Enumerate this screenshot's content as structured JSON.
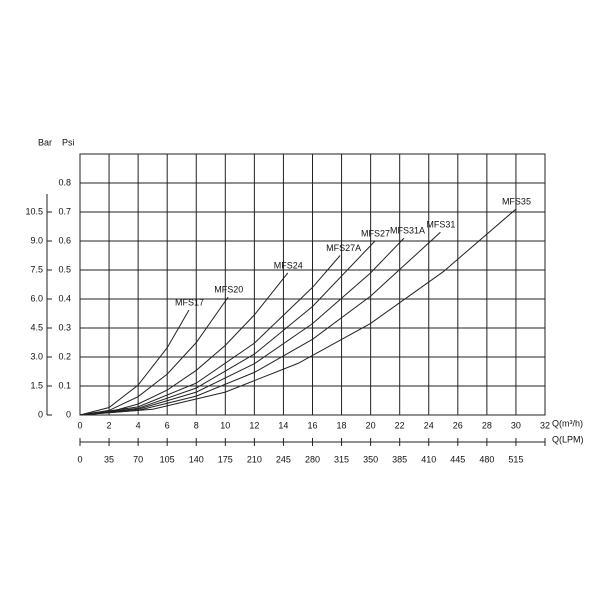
{
  "chart_data": {
    "type": "line",
    "y_label": "Bar",
    "y2_label": "Psi",
    "x_label": "Q(m³/h)",
    "x2_label": "Q(LPM)",
    "xlim": [
      0,
      32
    ],
    "xticks": [
      0,
      2,
      4,
      6,
      8,
      10,
      12,
      14,
      16,
      18,
      20,
      22,
      24,
      26,
      28,
      30,
      32
    ],
    "ylim": [
      0,
      0.9
    ],
    "yticks": [
      0,
      0.1,
      0.2,
      0.3,
      0.4,
      0.5,
      0.6,
      0.7,
      0.8
    ],
    "y2lim": [
      0,
      13.5
    ],
    "y2ticks": [
      0,
      1.5,
      {
        "value": 3,
        "label": "3.0"
      },
      4.5,
      {
        "value": 6,
        "label": "6.0"
      },
      7.5,
      {
        "value": 9,
        "label": "9.0"
      },
      10.5
    ],
    "x2_categories": [
      "0",
      "35",
      "70",
      "105",
      "140",
      "175",
      "210",
      "245",
      "280",
      "315",
      "350",
      "385",
      "410",
      "445",
      "480",
      "515"
    ],
    "grid": true,
    "color": "#222222",
    "series": [
      {
        "name": "MFS17",
        "x": [
          0,
          2,
          4,
          6,
          7.5
        ],
        "values": [
          0,
          0.026,
          0.103,
          0.232,
          0.362
        ]
      },
      {
        "name": "MFS20",
        "x": [
          0,
          2,
          4,
          6,
          8,
          10.2
        ],
        "values": [
          0,
          0.016,
          0.063,
          0.141,
          0.25,
          0.407
        ]
      },
      {
        "name": "MFS24",
        "x": [
          0,
          2,
          4,
          6,
          8,
          10,
          12,
          14.3
        ],
        "values": [
          0,
          0.01,
          0.038,
          0.086,
          0.154,
          0.24,
          0.345,
          0.49
        ]
      },
      {
        "name": "MFS27A",
        "x": [
          0,
          4,
          8,
          12,
          16,
          17.9
        ],
        "values": [
          0,
          0.028,
          0.11,
          0.248,
          0.44,
          0.55
        ]
      },
      {
        "name": "MFS27",
        "x": [
          0,
          4,
          8,
          12,
          16,
          20.3
        ],
        "values": [
          0,
          0.023,
          0.093,
          0.21,
          0.374,
          0.6
        ]
      },
      {
        "name": "MFS31A",
        "x": [
          0,
          4,
          8,
          12,
          16,
          20,
          22.3
        ],
        "values": [
          0,
          0.02,
          0.079,
          0.177,
          0.315,
          0.49,
          0.61
        ]
      },
      {
        "name": "MFS31",
        "x": [
          0,
          4,
          8,
          12,
          16,
          20,
          24.8
        ],
        "values": [
          0,
          0.016,
          0.065,
          0.147,
          0.261,
          0.41,
          0.63
        ]
      },
      {
        "name": "MFS35",
        "x": [
          0,
          5,
          10,
          15,
          20,
          25,
          30
        ],
        "values": [
          0,
          0.02,
          0.079,
          0.178,
          0.316,
          0.494,
          0.71
        ]
      }
    ]
  }
}
